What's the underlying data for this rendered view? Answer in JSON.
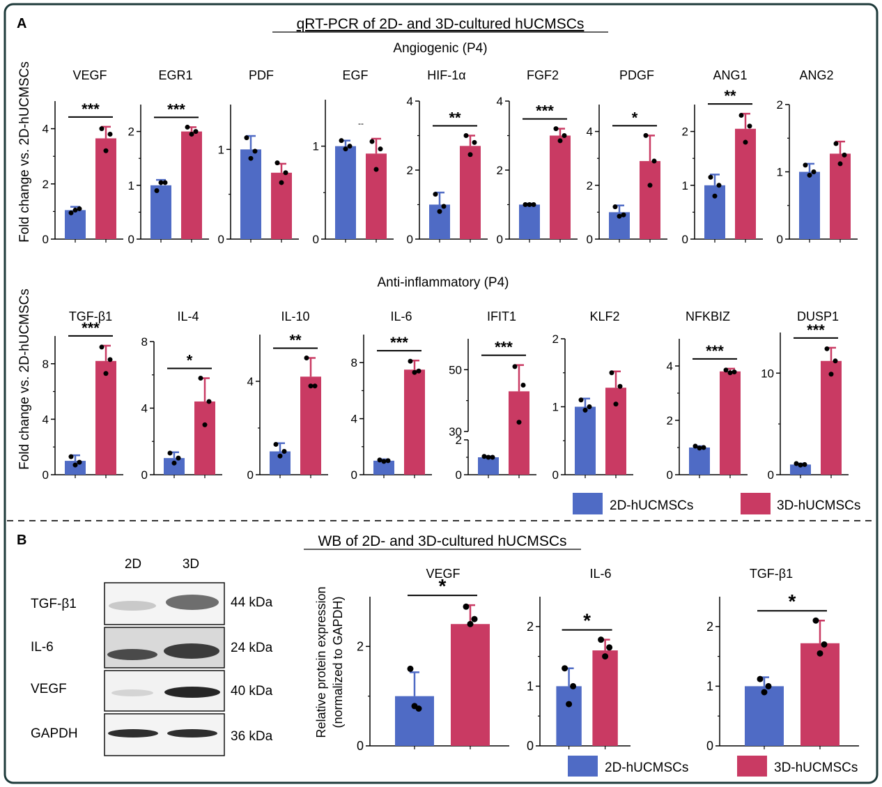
{
  "colors": {
    "frame": "#1e3a3a",
    "series_2d": "#4f6bc5",
    "series_3d": "#c93a63",
    "axis": "#000000"
  },
  "panel_a": {
    "label": "A",
    "title": "qRT-PCR of 2D- and 3D-cultured hUCMSCs",
    "group1_title": "Angiogenic (P4)",
    "group2_title": "Anti-inflammatory (P4)",
    "ylabel": "Fold change vs. 2D-hUCMSCs"
  },
  "panel_b": {
    "label": "B",
    "title": "WB of 2D- and 3D-cultured hUCMSCs",
    "blot": {
      "lane_labels": [
        "2D",
        "3D"
      ],
      "rows": [
        {
          "protein": "TGF-β1",
          "size": "44 kDa"
        },
        {
          "protein": "IL-6",
          "size": "24 kDa"
        },
        {
          "protein": "VEGF",
          "size": "40 kDa"
        },
        {
          "protein": "GAPDH",
          "size": "36 kDa"
        }
      ]
    },
    "ylabel_line1": "Relative protein expression",
    "ylabel_line2": "(normalized to GAPDH)"
  },
  "legend": {
    "series_2d": "2D-hUCMSCs",
    "series_3d": "3D-hUCMSCs"
  },
  "chart_data": [
    {
      "type": "bar",
      "panel": "A",
      "title": "VEGF",
      "ylim": [
        0,
        5
      ],
      "ticks": [
        0,
        2,
        4
      ],
      "sig": "***",
      "values": [
        1.05,
        3.65
      ],
      "errors": [
        0.12,
        0.42
      ],
      "points": [
        [
          0.95,
          1.1,
          1.05
        ],
        [
          4.0,
          3.8,
          3.2
        ]
      ]
    },
    {
      "type": "bar",
      "panel": "A",
      "title": "EGR1",
      "ylim": [
        0,
        2.5
      ],
      "ticks": [
        0,
        1,
        2
      ],
      "sig": "***",
      "values": [
        1.0,
        2.0
      ],
      "errors": [
        0.1,
        0.08
      ],
      "points": [
        [
          0.9,
          1.05,
          1.05
        ],
        [
          2.08,
          2.0,
          1.95
        ]
      ]
    },
    {
      "type": "bar",
      "panel": "A",
      "title": "PDF",
      "ylim": [
        0,
        1.5
      ],
      "ticks": [
        0,
        1
      ],
      "sig": "",
      "values": [
        1.0,
        0.74
      ],
      "errors": [
        0.15,
        0.1
      ],
      "points": [
        [
          1.13,
          0.98,
          0.9
        ],
        [
          0.85,
          0.74,
          0.63
        ]
      ]
    },
    {
      "type": "bar",
      "panel": "A",
      "title": "EGF",
      "ylim": [
        0,
        1.5
      ],
      "ticks": [
        0,
        1
      ],
      "sig": "--",
      "values": [
        1.0,
        0.92
      ],
      "errors": [
        0.06,
        0.16
      ],
      "points": [
        [
          1.06,
          1.0,
          0.97
        ],
        [
          1.05,
          0.97,
          0.75
        ]
      ]
    },
    {
      "type": "bar",
      "panel": "A",
      "title": "HIF-1α",
      "ylim": [
        0,
        4
      ],
      "ticks": [
        0,
        2,
        4
      ],
      "sig": "**",
      "values": [
        1.0,
        2.7
      ],
      "errors": [
        0.35,
        0.3
      ],
      "points": [
        [
          1.3,
          0.95,
          0.8
        ],
        [
          3.0,
          2.8,
          2.45
        ]
      ]
    },
    {
      "type": "bar",
      "panel": "A",
      "title": "FGF2",
      "ylim": [
        0,
        4
      ],
      "ticks": [
        0,
        2,
        4
      ],
      "sig": "***",
      "values": [
        1.0,
        3.0
      ],
      "errors": [
        0.03,
        0.2
      ],
      "points": [
        [
          1.0,
          1.0,
          1.0
        ],
        [
          3.2,
          3.0,
          2.85
        ]
      ]
    },
    {
      "type": "bar",
      "panel": "A",
      "title": "PDGF",
      "ylim": [
        0,
        5
      ],
      "ticks": [
        0,
        2,
        4
      ],
      "sig": "*",
      "values": [
        1.0,
        2.9
      ],
      "errors": [
        0.25,
        0.95
      ],
      "points": [
        [
          1.2,
          0.9,
          0.85
        ],
        [
          3.85,
          2.9,
          2.0
        ]
      ]
    },
    {
      "type": "bar",
      "panel": "A",
      "title": "ANG1",
      "ylim": [
        0,
        2.5
      ],
      "ticks": [
        0,
        1,
        2
      ],
      "sig": "**",
      "values": [
        1.0,
        2.05
      ],
      "errors": [
        0.2,
        0.28
      ],
      "points": [
        [
          1.15,
          1.0,
          0.8
        ],
        [
          2.3,
          2.1,
          1.8
        ]
      ]
    },
    {
      "type": "bar",
      "panel": "A",
      "title": "ANG2",
      "ylim": [
        0,
        2
      ],
      "ticks": [
        0,
        1,
        2
      ],
      "sig": "",
      "values": [
        1.0,
        1.27
      ],
      "errors": [
        0.12,
        0.18
      ],
      "points": [
        [
          1.1,
          1.0,
          0.95
        ],
        [
          1.42,
          1.25,
          1.12
        ]
      ]
    },
    {
      "type": "bar",
      "panel": "A",
      "title": "TGF-β1",
      "ylim": [
        0,
        10
      ],
      "ticks": [
        0,
        4,
        8
      ],
      "sig": "***",
      "values": [
        1.0,
        8.2
      ],
      "errors": [
        0.4,
        1.1
      ],
      "points": [
        [
          1.3,
          0.9,
          0.7
        ],
        [
          9.2,
          8.3,
          7.3
        ]
      ]
    },
    {
      "type": "bar",
      "panel": "A",
      "title": "IL-4",
      "ylim": [
        0,
        8
      ],
      "ticks": [
        0,
        4,
        8
      ],
      "sig": "*",
      "values": [
        1.0,
        4.4
      ],
      "errors": [
        0.35,
        1.4
      ],
      "points": [
        [
          1.3,
          1.0,
          0.7
        ],
        [
          5.8,
          4.4,
          3.0
        ]
      ]
    },
    {
      "type": "bar",
      "panel": "A",
      "title": "IL-10",
      "ylim": [
        0,
        6
      ],
      "ticks": [
        0,
        4
      ],
      "sig": "**",
      "values": [
        1.0,
        4.2
      ],
      "errors": [
        0.35,
        0.8
      ],
      "points": [
        [
          1.3,
          1.0,
          0.8
        ],
        [
          5.0,
          3.8,
          3.8
        ]
      ]
    },
    {
      "type": "bar",
      "panel": "A",
      "title": "IL-6",
      "ylim": [
        0,
        10
      ],
      "ticks": [
        0,
        4,
        8
      ],
      "sig": "***",
      "values": [
        1.0,
        7.5
      ],
      "errors": [
        0.1,
        0.65
      ],
      "points": [
        [
          1.05,
          1.0,
          0.95
        ],
        [
          8.1,
          7.4,
          7.3
        ]
      ]
    },
    {
      "type": "bar",
      "panel": "A",
      "title": "IFIT1",
      "ylim": [
        0,
        60
      ],
      "ticks": [
        0,
        2,
        30,
        50
      ],
      "axis_break": [
        2,
        30
      ],
      "sig": "***",
      "values": [
        1.0,
        43
      ],
      "errors": [
        0.06,
        8.5
      ],
      "points": [
        [
          1.05,
          1.0,
          1.0
        ],
        [
          51,
          45,
          33
        ]
      ]
    },
    {
      "type": "bar",
      "panel": "A",
      "title": "KLF2",
      "ylim": [
        0,
        2
      ],
      "ticks": [
        0,
        1,
        2
      ],
      "sig": "",
      "values": [
        1.0,
        1.28
      ],
      "errors": [
        0.12,
        0.24
      ],
      "points": [
        [
          1.1,
          1.0,
          0.95
        ],
        [
          1.5,
          1.3,
          1.04
        ]
      ]
    },
    {
      "type": "bar",
      "panel": "A",
      "title": "NFKBIZ",
      "ylim": [
        0,
        5
      ],
      "ticks": [
        0,
        2,
        4
      ],
      "sig": "***",
      "values": [
        1.0,
        3.8
      ],
      "errors": [
        0.05,
        0.1
      ],
      "points": [
        [
          1.05,
          1.0,
          0.98
        ],
        [
          3.85,
          3.78,
          3.75
        ]
      ]
    },
    {
      "type": "bar",
      "panel": "A",
      "title": "DUSP1",
      "ylim": [
        0,
        14
      ],
      "ticks": [
        0,
        10
      ],
      "sig": "***",
      "values": [
        1.0,
        11.2
      ],
      "errors": [
        0.1,
        1.3
      ],
      "points": [
        [
          1.1,
          1.0,
          0.95
        ],
        [
          12.4,
          11.2,
          9.9
        ]
      ]
    },
    {
      "type": "bar",
      "panel": "B",
      "title": "VEGF",
      "ylim": [
        0,
        3
      ],
      "ticks": [
        0,
        2
      ],
      "sig": "*",
      "values": [
        1.0,
        2.45
      ],
      "errors": [
        0.48,
        0.38
      ],
      "points": [
        [
          1.55,
          0.75,
          0.8
        ],
        [
          2.8,
          2.55,
          2.45
        ]
      ]
    },
    {
      "type": "bar",
      "panel": "B",
      "title": "IL-6",
      "ylim": [
        0,
        2.5
      ],
      "ticks": [
        0,
        1,
        2
      ],
      "sig": "*",
      "values": [
        1.0,
        1.6
      ],
      "errors": [
        0.3,
        0.18
      ],
      "points": [
        [
          1.3,
          1.0,
          0.7
        ],
        [
          1.78,
          1.65,
          1.5
        ]
      ]
    },
    {
      "type": "bar",
      "panel": "B",
      "title": "TGF-β1",
      "ylim": [
        0,
        2.5
      ],
      "ticks": [
        0,
        1,
        2
      ],
      "sig": "*",
      "values": [
        1.0,
        1.72
      ],
      "errors": [
        0.15,
        0.38
      ],
      "points": [
        [
          1.12,
          1.0,
          0.9
        ],
        [
          2.1,
          1.7,
          1.55
        ]
      ]
    }
  ]
}
